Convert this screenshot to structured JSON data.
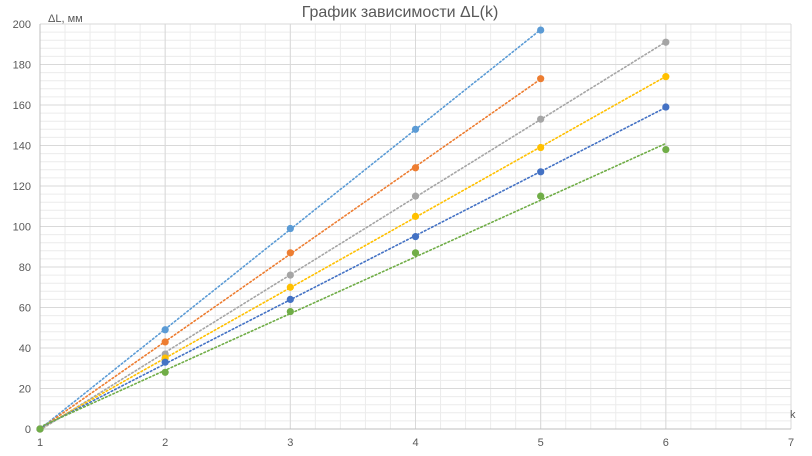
{
  "chart_data": {
    "type": "scatter",
    "title": "График зависимости ΔL(k)",
    "xlabel": "k",
    "ylabel": "ΔL, мм",
    "xlim": [
      1,
      7
    ],
    "ylim": [
      0,
      200
    ],
    "x_ticks": [
      "1",
      "2",
      "3",
      "4",
      "5",
      "6",
      "7"
    ],
    "y_ticks": [
      "0",
      "20",
      "40",
      "60",
      "80",
      "100",
      "120",
      "140",
      "160",
      "180",
      "200"
    ],
    "grid": true,
    "minor_grid": true,
    "trendlines": "dotted linear",
    "legend": "none",
    "series": [
      {
        "color": "#5b9bd5",
        "x": [
          1,
          2,
          3,
          4,
          5
        ],
        "y": [
          0,
          49,
          99,
          148,
          197
        ]
      },
      {
        "color": "#ed7d31",
        "x": [
          1,
          2,
          3,
          4,
          5
        ],
        "y": [
          0,
          43,
          87,
          129,
          173
        ]
      },
      {
        "color": "#a5a5a5",
        "x": [
          1,
          2,
          3,
          4,
          5,
          6
        ],
        "y": [
          0,
          37,
          76,
          115,
          153,
          191
        ]
      },
      {
        "color": "#ffc000",
        "x": [
          1,
          2,
          3,
          4,
          5,
          6
        ],
        "y": [
          0,
          35,
          70,
          105,
          139,
          174
        ]
      },
      {
        "color": "#4472c4",
        "x": [
          1,
          2,
          3,
          4,
          5,
          6
        ],
        "y": [
          0,
          33,
          64,
          95,
          127,
          159
        ]
      },
      {
        "color": "#70ad47",
        "x": [
          1,
          2,
          3,
          4,
          5,
          6
        ],
        "y": [
          0,
          28,
          58,
          87,
          115,
          138
        ]
      }
    ]
  }
}
